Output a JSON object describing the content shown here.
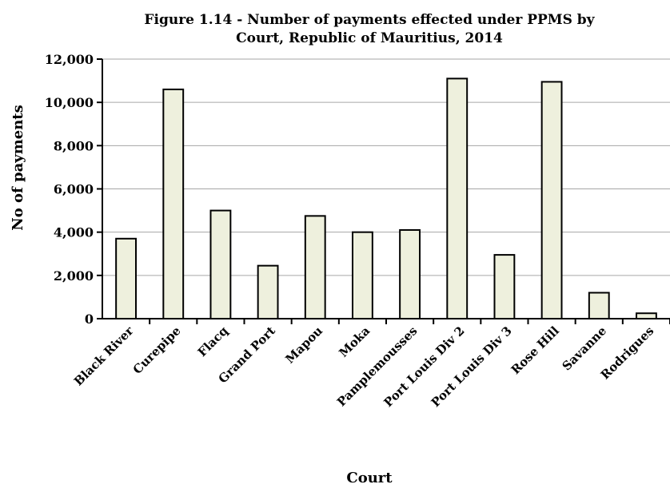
{
  "chart_data": {
    "type": "bar",
    "title_line1": "Figure 1.14 - Number of payments effected under PPMS by",
    "title_line2": "Court, Republic of Mauritius, 2014",
    "xlabel": "Court",
    "ylabel": "No of payments",
    "ylim": [
      0,
      12000
    ],
    "yticks": [
      0,
      2000,
      4000,
      6000,
      8000,
      10000,
      12000
    ],
    "ytick_labels": [
      "0",
      "2,000",
      "4,000",
      "6,000",
      "8,000",
      "10,000",
      "12,000"
    ],
    "grid": true,
    "categories": [
      "Black River",
      "Curepipe",
      "Flacq",
      "Grand Port",
      "Mapou",
      "Moka",
      "Pamplemousses",
      "Port Louis Div 2",
      "Port Louis Div 3",
      "Rose Hill",
      "Savanne",
      "Rodrigues"
    ],
    "values": [
      3700,
      10600,
      5000,
      2450,
      4750,
      4000,
      4100,
      11100,
      2950,
      10950,
      1200,
      250
    ],
    "colors": {
      "bar_fill": "#eef0dd",
      "bar_stroke": "#000000",
      "grid": "#a6a6a6"
    }
  }
}
